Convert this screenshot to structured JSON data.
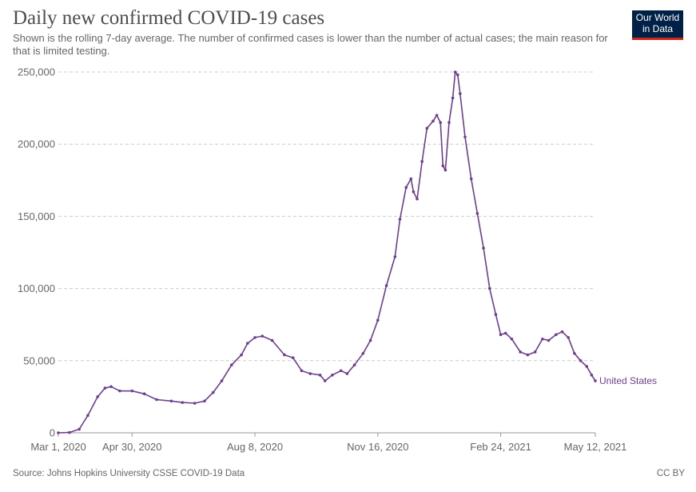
{
  "title": "Daily new confirmed COVID-19 cases",
  "subtitle": "Shown is the rolling 7-day average. The number of confirmed cases is lower than the number of actual cases; the main reason for that is limited testing.",
  "logo": {
    "line1": "Our World",
    "line2": "in Data"
  },
  "source": "Source: Johns Hopkins University CSSE COVID-19 Data",
  "license": "CC BY",
  "colors": {
    "series": "#6d3e91",
    "grid": "#cccccc",
    "axis": "#666666",
    "logo_bg": "#002147",
    "logo_accent": "#ce261e"
  },
  "chart_data": {
    "type": "line",
    "y_ticks": [
      "250,000",
      "200,000",
      "150,000",
      "100,000",
      "50,000",
      "0"
    ],
    "y_tick_values": [
      250000,
      200000,
      150000,
      100000,
      50000,
      0
    ],
    "x_ticks": [
      "Mar 1, 2020",
      "Apr 30, 2020",
      "Aug 8, 2020",
      "Nov 16, 2020",
      "Feb 24, 2021",
      "May 12, 2021"
    ],
    "x_tick_values": [
      "2020-03-01",
      "2020-04-30",
      "2020-08-08",
      "2020-11-16",
      "2021-02-24",
      "2021-05-12"
    ],
    "ylim": [
      0,
      250000
    ],
    "xlim": [
      "2020-03-01",
      "2021-05-12"
    ],
    "grid": "horizontal dashed",
    "series": [
      {
        "name": "United States",
        "points": [
          [
            "2020-03-01",
            0
          ],
          [
            "2020-03-10",
            200
          ],
          [
            "2020-03-18",
            2500
          ],
          [
            "2020-03-25",
            12000
          ],
          [
            "2020-04-02",
            25000
          ],
          [
            "2020-04-08",
            31000
          ],
          [
            "2020-04-13",
            32000
          ],
          [
            "2020-04-20",
            29000
          ],
          [
            "2020-04-30",
            29000
          ],
          [
            "2020-05-10",
            27000
          ],
          [
            "2020-05-20",
            23000
          ],
          [
            "2020-06-01",
            22000
          ],
          [
            "2020-06-10",
            21000
          ],
          [
            "2020-06-20",
            20500
          ],
          [
            "2020-06-28",
            22000
          ],
          [
            "2020-07-05",
            28000
          ],
          [
            "2020-07-12",
            36000
          ],
          [
            "2020-07-20",
            47000
          ],
          [
            "2020-07-28",
            54000
          ],
          [
            "2020-08-02",
            62000
          ],
          [
            "2020-08-08",
            66000
          ],
          [
            "2020-08-14",
            67000
          ],
          [
            "2020-08-22",
            64000
          ],
          [
            "2020-09-01",
            54000
          ],
          [
            "2020-09-08",
            52000
          ],
          [
            "2020-09-15",
            43000
          ],
          [
            "2020-09-22",
            41000
          ],
          [
            "2020-09-30",
            40000
          ],
          [
            "2020-10-04",
            36000
          ],
          [
            "2020-10-10",
            40000
          ],
          [
            "2020-10-17",
            43000
          ],
          [
            "2020-10-22",
            41000
          ],
          [
            "2020-10-28",
            47000
          ],
          [
            "2020-11-04",
            55000
          ],
          [
            "2020-11-10",
            64000
          ],
          [
            "2020-11-16",
            78000
          ],
          [
            "2020-11-23",
            102000
          ],
          [
            "2020-11-30",
            122000
          ],
          [
            "2020-12-04",
            148000
          ],
          [
            "2020-12-09",
            170000
          ],
          [
            "2020-12-13",
            176000
          ],
          [
            "2020-12-15",
            167000
          ],
          [
            "2020-12-18",
            162000
          ],
          [
            "2020-12-22",
            188000
          ],
          [
            "2020-12-26",
            211000
          ],
          [
            "2020-12-31",
            216000
          ],
          [
            "2021-01-03",
            220000
          ],
          [
            "2021-01-06",
            215000
          ],
          [
            "2021-01-08",
            185000
          ],
          [
            "2021-01-10",
            182000
          ],
          [
            "2021-01-13",
            215000
          ],
          [
            "2021-01-16",
            232000
          ],
          [
            "2021-01-18",
            250000
          ],
          [
            "2021-01-20",
            248000
          ],
          [
            "2021-01-22",
            235000
          ],
          [
            "2021-01-26",
            205000
          ],
          [
            "2021-01-31",
            176000
          ],
          [
            "2021-02-05",
            152000
          ],
          [
            "2021-02-10",
            128000
          ],
          [
            "2021-02-15",
            100000
          ],
          [
            "2021-02-20",
            82000
          ],
          [
            "2021-02-24",
            68000
          ],
          [
            "2021-02-28",
            69000
          ],
          [
            "2021-03-05",
            65000
          ],
          [
            "2021-03-12",
            56000
          ],
          [
            "2021-03-18",
            54000
          ],
          [
            "2021-03-24",
            56000
          ],
          [
            "2021-03-30",
            65000
          ],
          [
            "2021-04-04",
            64000
          ],
          [
            "2021-04-10",
            68000
          ],
          [
            "2021-04-15",
            70000
          ],
          [
            "2021-04-20",
            66000
          ],
          [
            "2021-04-25",
            55000
          ],
          [
            "2021-04-30",
            50000
          ],
          [
            "2021-05-05",
            46000
          ],
          [
            "2021-05-09",
            40000
          ],
          [
            "2021-05-12",
            36000
          ]
        ]
      }
    ]
  }
}
